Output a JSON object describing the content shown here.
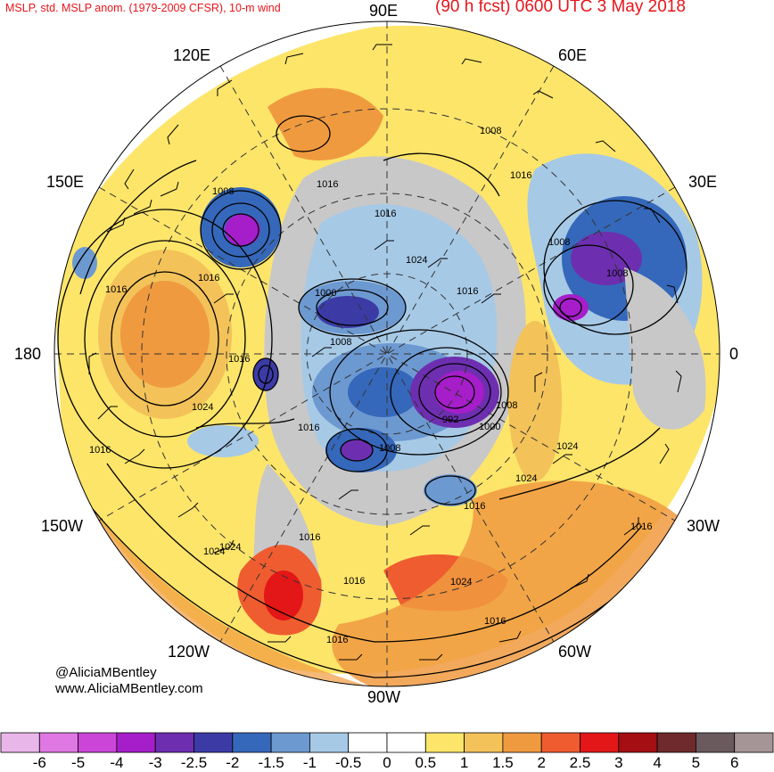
{
  "header": {
    "left_title": "MSLP, std. MSLP anom. (1979-2009 CFSR), 10-m wind",
    "right_title": "(90 h fcst) 0600 UTC 3 May 2018"
  },
  "map": {
    "projection": "north polar stereographic",
    "longitude_labels": {
      "top": "90E",
      "top_left": "120E",
      "top_right": "60E",
      "upper_left": "150E",
      "upper_right": "30E",
      "left": "180",
      "right": "0",
      "lower_left": "150W",
      "lower_right": "30W",
      "bottom_left": "120W",
      "bottom_right": "60W",
      "bottom": "90W"
    },
    "contour_labels": [
      "1008",
      "1016",
      "1016",
      "1016",
      "1016",
      "1016",
      "1024",
      "1000",
      "1008",
      "1016",
      "1024",
      "1016",
      "1008",
      "1008",
      "1008",
      "992",
      "1000",
      "1008",
      "1024",
      "1024",
      "1016",
      "1016",
      "1024",
      "1016",
      "1016",
      "1016",
      "1024",
      "1016",
      "1008",
      "1016",
      "1024",
      "1016",
      "1016"
    ]
  },
  "credits": {
    "handle": "@AliciaMBentley",
    "site": "www.AliciaMBentley.com"
  },
  "colorbar": {
    "labels": [
      "-6",
      "-5",
      "-4",
      "-3",
      "-2.5",
      "-2",
      "-1.5",
      "-1",
      "-0.5",
      "0",
      "0.5",
      "1",
      "1.5",
      "2",
      "2.5",
      "3",
      "4",
      "5",
      "6"
    ],
    "colors": [
      "#e9b6ea",
      "#df78e2",
      "#cb46d8",
      "#a51ec9",
      "#6d2fb0",
      "#3c3ba6",
      "#3568ba",
      "#6d99d1",
      "#a6c9e6",
      "#ffffff",
      "#ffffff",
      "#fde56a",
      "#f3c259",
      "#f09a3f",
      "#ef5c2f",
      "#e31717",
      "#a50e12",
      "#6e2a2c",
      "#6a5a5e",
      "#a59596"
    ]
  }
}
